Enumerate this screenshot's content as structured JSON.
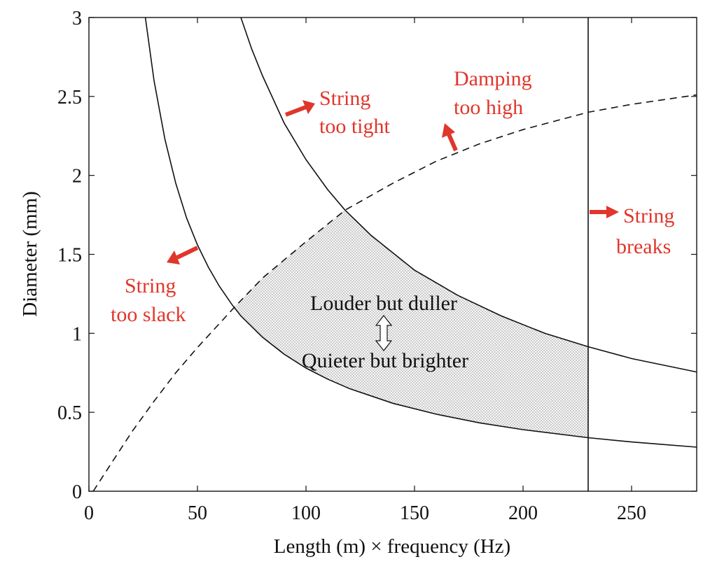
{
  "chart_data": {
    "type": "line",
    "title": "",
    "xlabel": "Length (m) × frequency (Hz)",
    "ylabel": "Diameter (mm)",
    "xlim": [
      0,
      280
    ],
    "ylim": [
      0,
      3
    ],
    "xticks": [
      0,
      50,
      100,
      150,
      200,
      250
    ],
    "xtick_labels": [
      "0",
      "50",
      "100",
      "150",
      "200",
      "250"
    ],
    "yticks": [
      0,
      0.5,
      1,
      1.5,
      2,
      2.5,
      3
    ],
    "ytick_labels": [
      "0",
      "0.5",
      "1",
      "1.5",
      "2",
      "2.5",
      "3"
    ],
    "grid": false,
    "colors": {
      "annotation": "#e0362b",
      "line": "#111111",
      "shade": "#d8d8d8"
    },
    "series": [
      {
        "style": "solid",
        "x": [
          26,
          30,
          35,
          40,
          45,
          50,
          55,
          60,
          66,
          70,
          80,
          90,
          100,
          110,
          120,
          140,
          160,
          180,
          200,
          230,
          250,
          280
        ],
        "y": [
          3.0,
          2.6,
          2.23,
          1.95,
          1.73,
          1.56,
          1.42,
          1.3,
          1.18,
          1.11,
          0.975,
          0.867,
          0.78,
          0.71,
          0.65,
          0.557,
          0.488,
          0.433,
          0.39,
          0.339,
          0.312,
          0.279
        ]
      },
      {
        "style": "solid",
        "x": [
          70,
          75,
          80,
          90,
          100,
          110,
          118,
          130,
          150,
          170,
          190,
          210,
          230,
          250,
          280
        ],
        "y": [
          3.0,
          2.8,
          2.63,
          2.33,
          2.1,
          1.91,
          1.78,
          1.62,
          1.4,
          1.24,
          1.11,
          1.0,
          0.915,
          0.84,
          0.755
        ]
      },
      {
        "style": "dashed",
        "x": [
          2,
          10,
          20,
          30,
          40,
          50,
          60,
          66,
          80,
          100,
          118,
          140,
          160,
          180,
          200,
          230,
          250,
          280
        ],
        "y": [
          0.0,
          0.17,
          0.38,
          0.57,
          0.75,
          0.91,
          1.06,
          1.15,
          1.35,
          1.58,
          1.78,
          1.95,
          2.09,
          2.2,
          2.29,
          2.4,
          2.45,
          2.51
        ]
      }
    ],
    "vertical_line": {
      "x": 230
    },
    "shaded_region": "between lower solid curve and min(dashed, upper solid), x from 66 to 230",
    "annotations": {
      "louder": "Louder but duller",
      "quieter": "Quieter but brighter",
      "tight_1": "String",
      "tight_2": "too tight",
      "damping_1": "Damping",
      "damping_2": "too high",
      "slack_1": "String",
      "slack_2": "too slack",
      "breaks_1": "String",
      "breaks_2": "breaks"
    }
  }
}
